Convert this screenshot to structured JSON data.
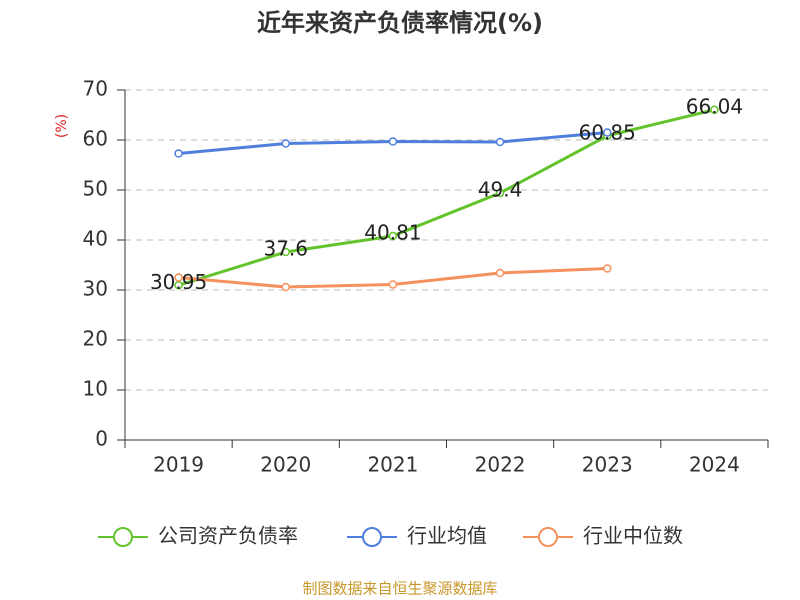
{
  "chart_data": {
    "type": "line",
    "title": "近年来资产负债率情况(%)",
    "y_label": "(%)",
    "source": "制图数据来自恒生聚源数据库",
    "categories": [
      "2019",
      "2020",
      "2021",
      "2022",
      "2023",
      "2024"
    ],
    "series": [
      {
        "name": "公司资产负债率",
        "color": "#62c42a",
        "values": [
          30.95,
          37.6,
          40.81,
          49.4,
          60.85,
          66.04
        ],
        "labels": true
      },
      {
        "name": "行业均值",
        "color": "#4e7fde",
        "values": [
          57.3,
          59.3,
          59.7,
          59.6,
          61.5,
          null
        ]
      },
      {
        "name": "行业中位数",
        "color": "#f5915e",
        "values": [
          32.5,
          30.6,
          31.1,
          33.4,
          34.3,
          null
        ]
      }
    ],
    "ylim": [
      0,
      70
    ],
    "yticks": [
      0,
      10,
      20,
      30,
      40,
      50,
      60,
      70
    ],
    "grid": true
  }
}
